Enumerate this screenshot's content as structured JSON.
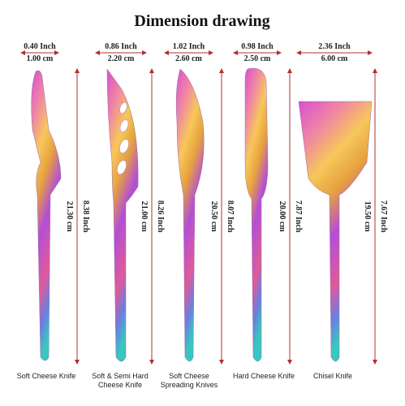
{
  "title": "Dimension drawing",
  "knives": [
    {
      "name": [
        "Soft Cheese Knife"
      ],
      "width_inch": "0.40 Inch",
      "width_cm": "1.00 cm",
      "length_cm": "21.30 cm",
      "length_inch": "8.38 Inch"
    },
    {
      "name": [
        "Soft & Semi Hard",
        "Cheese Knife"
      ],
      "width_inch": "0.86 Inch",
      "width_cm": "2.20 cm",
      "length_cm": "21.00 cm",
      "length_inch": "8.26 Inch"
    },
    {
      "name": [
        "Soft Cheese",
        "Spreading Knives"
      ],
      "width_inch": "1.02 Inch",
      "width_cm": "2.60 cm",
      "length_cm": "20.50 cm",
      "length_inch": "8.07 Inch"
    },
    {
      "name": [
        "Hard Cheese Knife"
      ],
      "width_inch": "0.98 Inch",
      "width_cm": "2.50 cm",
      "length_cm": "20.00 cm",
      "length_inch": "7.87 Inch"
    },
    {
      "name": [
        "Chisel Knife"
      ],
      "width_inch": "2.36 Inch",
      "width_cm": "6.00 cm",
      "length_cm": "19.50 cm",
      "length_inch": "7.67 Inch"
    }
  ]
}
